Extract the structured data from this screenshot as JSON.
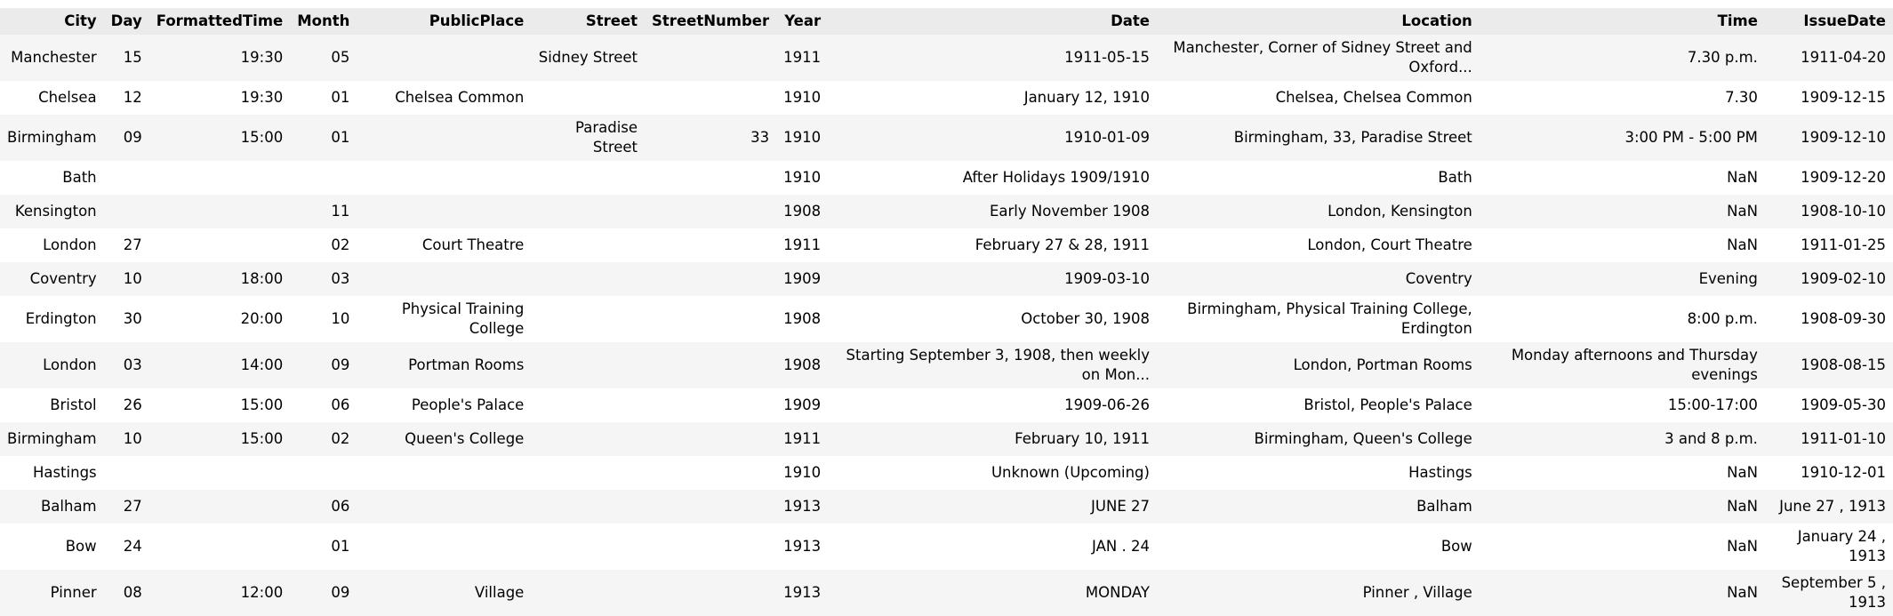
{
  "columns": [
    "City",
    "Day",
    "FormattedTime",
    "Month",
    "PublicPlace",
    "Street",
    "StreetNumber",
    "Year",
    "Date",
    "Location",
    "Time",
    "IssueDate"
  ],
  "rows": [
    [
      "Manchester",
      "15",
      "19:30",
      "05",
      "",
      "Sidney Street",
      "",
      "1911",
      "1911-05-15",
      "Manchester, Corner of Sidney Street and Oxford...",
      "7.30 p.m.",
      "1911-04-20"
    ],
    [
      "Chelsea",
      "12",
      "19:30",
      "01",
      "Chelsea Common",
      "",
      "",
      "1910",
      "January 12, 1910",
      "Chelsea, Chelsea Common",
      "7.30",
      "1909-12-15"
    ],
    [
      "Birmingham",
      "09",
      "15:00",
      "01",
      "",
      "Paradise Street",
      "33",
      "1910",
      "1910-01-09",
      "Birmingham, 33, Paradise Street",
      "3:00 PM - 5:00 PM",
      "1909-12-10"
    ],
    [
      "Bath",
      "",
      "",
      "",
      "",
      "",
      "",
      "1910",
      "After Holidays 1909/1910",
      "Bath",
      "NaN",
      "1909-12-20"
    ],
    [
      "Kensington",
      "",
      "",
      "11",
      "",
      "",
      "",
      "1908",
      "Early November 1908",
      "London, Kensington",
      "NaN",
      "1908-10-10"
    ],
    [
      "London",
      "27",
      "",
      "02",
      "Court Theatre",
      "",
      "",
      "1911",
      "February 27 & 28, 1911",
      "London, Court Theatre",
      "NaN",
      "1911-01-25"
    ],
    [
      "Coventry",
      "10",
      "18:00",
      "03",
      "",
      "",
      "",
      "1909",
      "1909-03-10",
      "Coventry",
      "Evening",
      "1909-02-10"
    ],
    [
      "Erdington",
      "30",
      "20:00",
      "10",
      "Physical Training College",
      "",
      "",
      "1908",
      "October 30, 1908",
      "Birmingham, Physical Training College, Erdington",
      "8:00 p.m.",
      "1908-09-30"
    ],
    [
      "London",
      "03",
      "14:00",
      "09",
      "Portman Rooms",
      "",
      "",
      "1908",
      "Starting September 3, 1908, then weekly on Mon...",
      "London, Portman Rooms",
      "Monday afternoons and Thursday evenings",
      "1908-08-15"
    ],
    [
      "Bristol",
      "26",
      "15:00",
      "06",
      "People's Palace",
      "",
      "",
      "1909",
      "1909-06-26",
      "Bristol, People's Palace",
      "15:00-17:00",
      "1909-05-30"
    ],
    [
      "Birmingham",
      "10",
      "15:00",
      "02",
      "Queen's College",
      "",
      "",
      "1911",
      "February 10, 1911",
      "Birmingham, Queen's College",
      "3 and 8 p.m.",
      "1911-01-10"
    ],
    [
      "Hastings",
      "",
      "",
      "",
      "",
      "",
      "",
      "1910",
      "Unknown (Upcoming)",
      "Hastings",
      "NaN",
      "1910-12-01"
    ],
    [
      "Balham",
      "27",
      "",
      "06",
      "",
      "",
      "",
      "1913",
      "JUNE 27",
      "Balham",
      "NaN",
      "June 27 , 1913"
    ],
    [
      "Bow",
      "24",
      "",
      "01",
      "",
      "",
      "",
      "1913",
      "JAN . 24",
      "Bow",
      "NaN",
      "January 24 , 1913"
    ],
    [
      "Pinner",
      "08",
      "12:00",
      "09",
      "Village",
      "",
      "",
      "1913",
      "MONDAY",
      "Pinner , Village",
      "NaN",
      "September 5 , 1913"
    ]
  ]
}
